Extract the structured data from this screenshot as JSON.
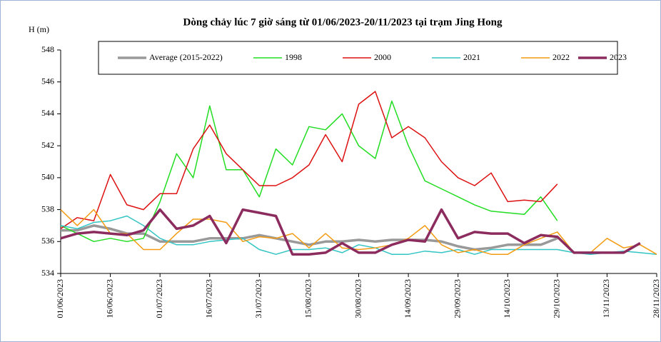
{
  "chart_data": {
    "type": "line",
    "title": "Dòng chảy lúc 7 giờ sáng từ 01/06/2023-20/11/2023 tại trạm Jing Hong",
    "y_label": "H (m)",
    "x": [
      "01/06/2023",
      "06/06/2023",
      "11/06/2023",
      "16/06/2023",
      "21/06/2023",
      "26/06/2023",
      "01/07/2023",
      "06/07/2023",
      "11/07/2023",
      "16/07/2023",
      "21/07/2023",
      "26/07/2023",
      "31/07/2023",
      "05/08/2023",
      "10/08/2023",
      "15/08/2023",
      "20/08/2023",
      "25/08/2023",
      "30/08/2023",
      "04/09/2023",
      "09/09/2023",
      "14/09/2023",
      "19/09/2023",
      "24/09/2023",
      "29/09/2023",
      "04/10/2023",
      "09/10/2023",
      "14/10/2023",
      "19/10/2023",
      "24/10/2023",
      "29/10/2023",
      "03/11/2023",
      "08/11/2023",
      "13/11/2023",
      "18/11/2023",
      "23/11/2023",
      "28/11/2023"
    ],
    "xticks": [
      "01/06/2023",
      "16/06/2023",
      "01/07/2023",
      "16/07/2023",
      "31/07/2023",
      "15/08/2023",
      "30/08/2023",
      "14/09/2023",
      "29/09/2023",
      "14/10/2023",
      "29/10/2023",
      "13/11/2023",
      "28/11/2023"
    ],
    "ylim": [
      534,
      548
    ],
    "yticks": [
      534,
      536,
      538,
      540,
      542,
      544,
      546,
      548
    ],
    "legend": "top",
    "series": [
      {
        "name": "Average (2015-2022)",
        "color": "#999999",
        "width": 3.5,
        "values": [
          536.7,
          536.7,
          537,
          536.8,
          536.5,
          536.5,
          536,
          536,
          536,
          536.2,
          536.2,
          536.2,
          536.4,
          536.2,
          536,
          535.8,
          536,
          536,
          536.1,
          536,
          536.1,
          536.1,
          536.1,
          536,
          535.7,
          535.5,
          535.6,
          535.8,
          535.8,
          535.8,
          536.2,
          null,
          null,
          null,
          null,
          null,
          null
        ]
      },
      {
        "name": "1998",
        "color": "#22dd22",
        "width": 1.5,
        "values": [
          537,
          536.5,
          536,
          536.2,
          536,
          536.2,
          538.5,
          541.5,
          540,
          544.5,
          540.5,
          540.5,
          538.8,
          541.8,
          540.8,
          543.2,
          543,
          544,
          542,
          541.2,
          544.8,
          542,
          539.8,
          539.3,
          538.8,
          538.3,
          537.9,
          537.8,
          537.7,
          538.8,
          537.3,
          null,
          null,
          null,
          null,
          null,
          null
        ]
      },
      {
        "name": "2000",
        "color": "#dd1111",
        "width": 1.5,
        "values": [
          536.8,
          537.5,
          537.3,
          540.2,
          538.3,
          538,
          539,
          539,
          541.8,
          543.3,
          541.5,
          540.5,
          539.5,
          539.5,
          540,
          540.8,
          542.7,
          541,
          544.6,
          545.4,
          542.5,
          543.2,
          542.5,
          541,
          540,
          539.5,
          540.3,
          538.5,
          538.6,
          538.5,
          539.6,
          null,
          null,
          null,
          null,
          null,
          null
        ]
      },
      {
        "name": "2021",
        "color": "#33c4c4",
        "width": 1.5,
        "values": [
          537,
          536.8,
          537.2,
          537.3,
          537.6,
          537,
          536.2,
          535.8,
          535.8,
          536,
          536.1,
          536.2,
          535.5,
          535.2,
          535.5,
          535.5,
          535.6,
          535.3,
          535.8,
          535.6,
          535.2,
          535.2,
          535.4,
          535.3,
          535.5,
          535.2,
          535.5,
          535.5,
          535.5,
          535.5,
          535.5,
          535.3,
          535.2,
          535.3,
          535.4,
          535.3,
          535.2
        ]
      },
      {
        "name": "2022",
        "color": "#f39c12",
        "width": 1.5,
        "values": [
          538,
          537,
          538,
          536.5,
          536.5,
          535.5,
          535.5,
          536.5,
          537.4,
          537.4,
          537.2,
          536,
          536.3,
          536.2,
          536.5,
          535.6,
          536.5,
          535.6,
          535.5,
          535.6,
          535.8,
          536.2,
          537,
          535.8,
          535.3,
          535.5,
          535.2,
          535.2,
          535.8,
          536.2,
          536.6,
          535.3,
          535.3,
          536.2,
          535.6,
          535.8,
          535.2
        ]
      },
      {
        "name": "2023",
        "color": "#8b2b5e",
        "width": 3.5,
        "values": [
          536.2,
          536.5,
          536.6,
          536.5,
          536.4,
          536.7,
          538,
          536.8,
          537,
          537.6,
          535.9,
          538,
          537.8,
          537.6,
          535.2,
          535.2,
          535.3,
          535.9,
          535.3,
          535.3,
          535.8,
          536.1,
          536,
          538,
          536.2,
          536.6,
          536.5,
          536.5,
          535.9,
          536.4,
          536.3,
          535.3,
          535.3,
          535.3,
          535.3,
          535.9,
          null
        ]
      }
    ]
  }
}
